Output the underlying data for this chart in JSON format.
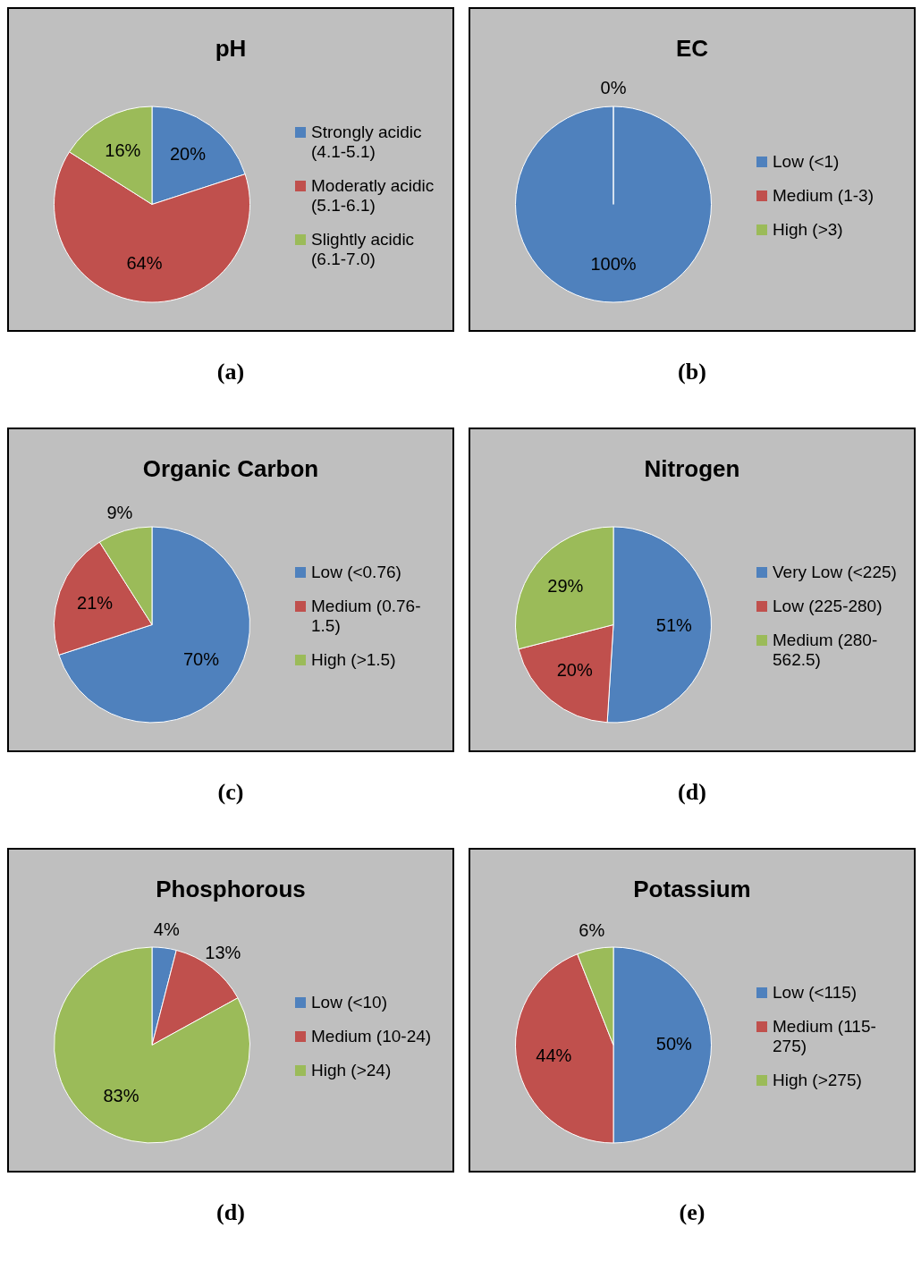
{
  "chart_data": [
    {
      "type": "pie",
      "title": "pH",
      "categories": [
        "Strongly acidic (4.1-5.1)",
        "Moderatly acidic (5.1-6.1)",
        "Slightly acidic (6.1-7.0)"
      ],
      "values": [
        20,
        64,
        16
      ],
      "colors": [
        "#4f81bd",
        "#c0504d",
        "#9bbb59"
      ],
      "value_labels": [
        "20%",
        "64%",
        "16%"
      ],
      "legend": "right",
      "annotations": [
        "(a)"
      ]
    },
    {
      "type": "pie",
      "title": "EC",
      "categories": [
        "Low (<1)",
        "Medium (1-3)",
        "High (>3)"
      ],
      "values": [
        100,
        0,
        0
      ],
      "colors": [
        "#4f81bd",
        "#c0504d",
        "#9bbb59"
      ],
      "value_labels": [
        "100%",
        "0%",
        null
      ],
      "legend": "right",
      "annotations": [
        "(b)"
      ]
    },
    {
      "type": "pie",
      "title": "Organic Carbon",
      "categories": [
        "Low (<0.76)",
        "Medium (0.76-1.5)",
        "High (>1.5)"
      ],
      "values": [
        70,
        21,
        9
      ],
      "colors": [
        "#4f81bd",
        "#c0504d",
        "#9bbb59"
      ],
      "value_labels": [
        "70%",
        "21%",
        "9%"
      ],
      "legend": "right",
      "annotations": [
        "(c)"
      ]
    },
    {
      "type": "pie",
      "title": "Nitrogen",
      "categories": [
        "Very Low (<225)",
        "Low (225-280)",
        "Medium (280-562.5)"
      ],
      "values": [
        51,
        20,
        29
      ],
      "colors": [
        "#4f81bd",
        "#c0504d",
        "#9bbb59"
      ],
      "value_labels": [
        "51%",
        "20%",
        "29%"
      ],
      "legend": "right",
      "annotations": [
        "(d)"
      ]
    },
    {
      "type": "pie",
      "title": "Phosphorous",
      "categories": [
        "Low (<10)",
        "Medium (10-24)",
        "High (>24)"
      ],
      "values": [
        4,
        13,
        83
      ],
      "colors": [
        "#4f81bd",
        "#c0504d",
        "#9bbb59"
      ],
      "value_labels": [
        "4%",
        "13%",
        "83%"
      ],
      "legend": "right",
      "annotations": [
        "(d)"
      ]
    },
    {
      "type": "pie",
      "title": "Potassium",
      "categories": [
        "Low (<115)",
        "Medium (115-275)",
        "High (>275)"
      ],
      "values": [
        50,
        44,
        6
      ],
      "colors": [
        "#4f81bd",
        "#c0504d",
        "#9bbb59"
      ],
      "value_labels": [
        "50%",
        "44%",
        "6%"
      ],
      "legend": "right",
      "annotations": [
        "(e)"
      ]
    }
  ]
}
